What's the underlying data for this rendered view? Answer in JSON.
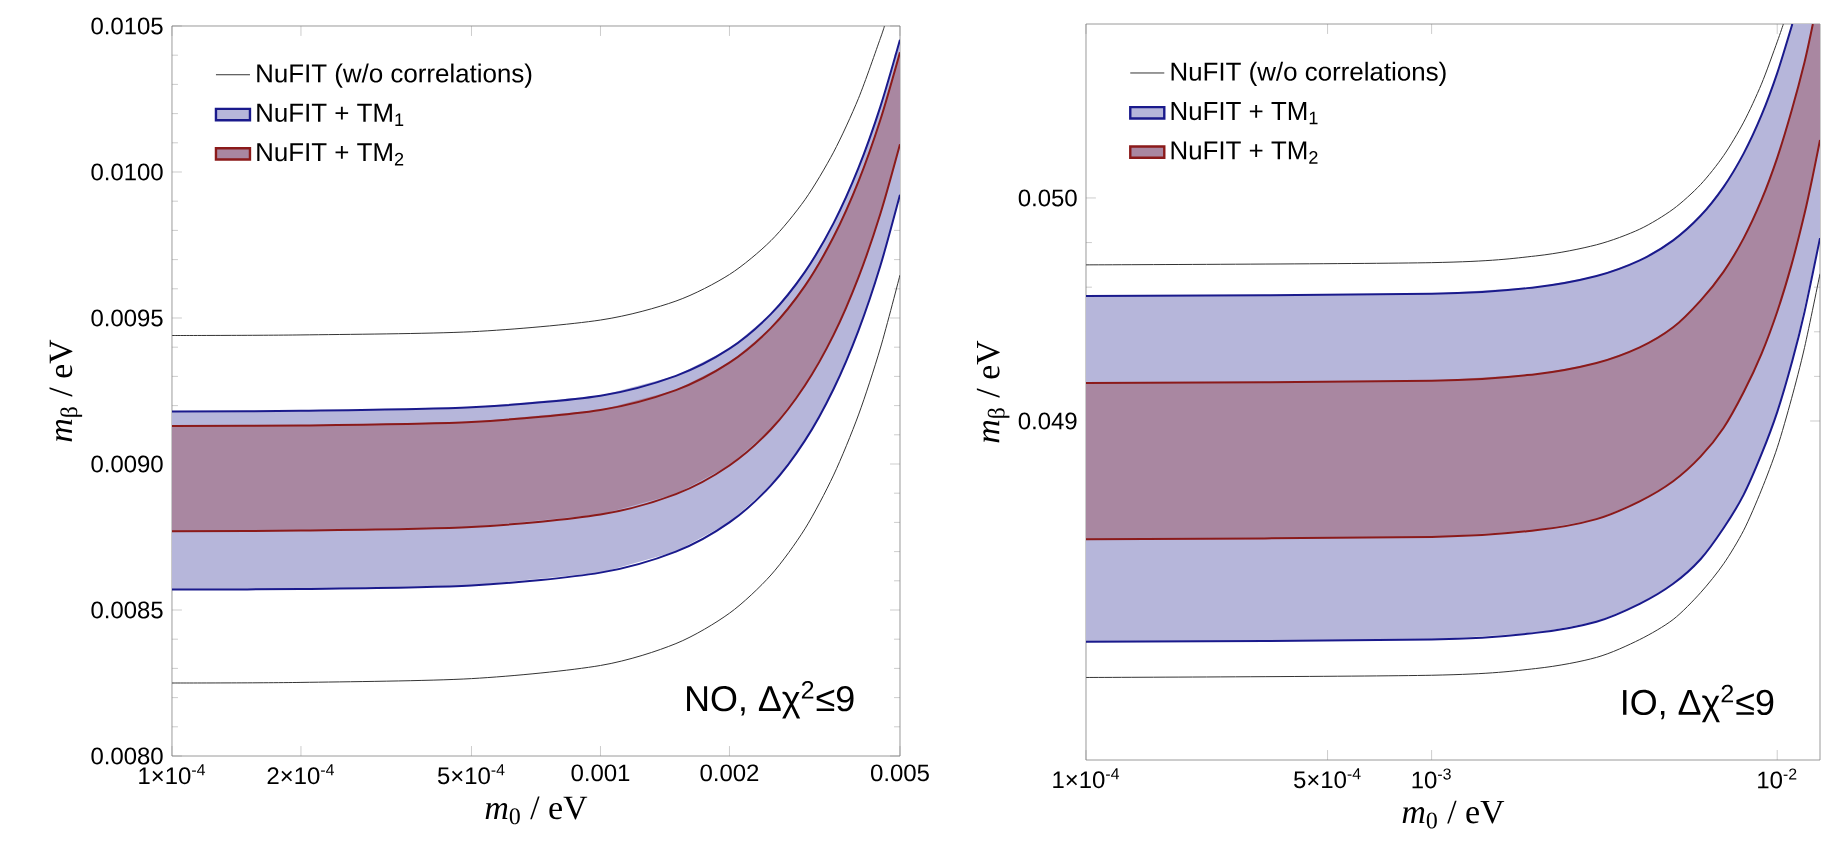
{
  "chart_data": [
    {
      "type": "line",
      "xlabel": "*m*$_{0}$ / eV",
      "ylabel": "*m*$_{β}$ / eV",
      "log": "x",
      "legend": "top left",
      "xlim": [
        0.0001,
        0.005
      ],
      "ylim": [
        0.008,
        0.0105
      ],
      "xticks": [
        {
          "value": 0.0001,
          "label": "1×10$^{-4}$"
        },
        {
          "value": 0.0002,
          "label": "2×10$^{-4}$"
        },
        {
          "value": 0.0005,
          "label": "5×10$^{-4}$"
        },
        0.001,
        0.002,
        0.005
      ],
      "yticks": [
        {
          "value": 0.008,
          "label": "0.0080"
        },
        {
          "value": 0.0085,
          "label": "0.0085"
        },
        {
          "value": 0.009,
          "label": "0.0090"
        },
        {
          "value": 0.0095,
          "label": "0.0095"
        },
        {
          "value": 0.01,
          "label": "0.0100"
        },
        {
          "value": 0.0105,
          "label": "0.0105"
        }
      ],
      "annotations": [
        "NO, Δχ$^{2}$≤9"
      ],
      "series": [
        {
          "name": "NuFIT (w/o correlations)",
          "type": "line",
          "color": "#333333",
          "x": [
            0.0001,
            0.0002,
            0.0005,
            0.001,
            0.0015,
            0.002,
            0.0025,
            0.003,
            0.0035,
            0.004,
            0.0045,
            0.0046
          ],
          "values": [
            0.00944,
            0.009442,
            0.009453,
            0.009493,
            0.009558,
            0.009649,
            0.009765,
            0.009905,
            0.010068,
            0.010252,
            0.010458,
            0.0105
          ]
        },
        {
          "type": "line",
          "color": "#333333",
          "x": [
            0.0001,
            0.0002,
            0.0005,
            0.001,
            0.0015,
            0.002,
            0.0025,
            0.003,
            0.0035,
            0.004,
            0.0045,
            0.005
          ],
          "values": [
            0.00825,
            0.008252,
            0.008265,
            0.00831,
            0.008385,
            0.008489,
            0.00862,
            0.008778,
            0.008962,
            0.009168,
            0.009397,
            0.009647
          ]
        },
        {
          "name": "NuFIT + TM$_{1}$",
          "color": "#1a1a8c",
          "x": [
            0.0001,
            0.0002,
            0.0005,
            0.001,
            0.0015,
            0.002,
            0.0025,
            0.003,
            0.0035,
            0.004,
            0.0045,
            0.005
          ],
          "values": [
            0.00918,
            0.009182,
            0.009194,
            0.009234,
            0.009302,
            0.009395,
            0.009514,
            0.009658,
            0.009825,
            0.010014,
            0.010224,
            0.010453
          ],
          "upper": [
            0.00918,
            0.009182,
            0.009194,
            0.009234,
            0.009302,
            0.009395,
            0.009514,
            0.009658,
            0.009825,
            0.010014,
            0.010224,
            0.010453
          ],
          "lower": [
            0.00857,
            0.008572,
            0.008584,
            0.008628,
            0.0087,
            0.0088,
            0.008927,
            0.00908,
            0.009257,
            0.009457,
            0.009679,
            0.009922
          ]
        },
        {
          "type": "line",
          "color": "#1a1a8c",
          "x": [
            0.0001,
            0.0002,
            0.0005,
            0.001,
            0.0015,
            0.002,
            0.0025,
            0.003,
            0.0035,
            0.004,
            0.0045,
            0.005
          ],
          "values": [
            0.00857,
            0.008572,
            0.008584,
            0.008628,
            0.0087,
            0.0088,
            0.008927,
            0.00908,
            0.009257,
            0.009457,
            0.009679,
            0.009922
          ]
        },
        {
          "name": "NuFIT + TM$_{2}$",
          "color": "#8b1a1a",
          "x": [
            0.0001,
            0.0002,
            0.0005,
            0.001,
            0.0015,
            0.002,
            0.0025,
            0.003,
            0.0035,
            0.004,
            0.0045,
            0.005
          ],
          "values": [
            0.00913,
            0.009132,
            0.009144,
            0.009185,
            0.009253,
            0.009347,
            0.009466,
            0.00961,
            0.009778,
            0.009968,
            0.010179,
            0.01041
          ],
          "upper": [
            0.00913,
            0.009132,
            0.009144,
            0.009185,
            0.009253,
            0.009347,
            0.009466,
            0.00961,
            0.009778,
            0.009968,
            0.010179,
            0.01041
          ],
          "lower": [
            0.00877,
            0.008772,
            0.008784,
            0.008827,
            0.008897,
            0.008995,
            0.009119,
            0.009269,
            0.009442,
            0.009639,
            0.009857,
            0.010095
          ]
        },
        {
          "type": "line",
          "color": "#8b1a1a",
          "x": [
            0.0001,
            0.0002,
            0.0005,
            0.001,
            0.0015,
            0.002,
            0.0025,
            0.003,
            0.0035,
            0.004,
            0.0045,
            0.005
          ],
          "values": [
            0.00877,
            0.008772,
            0.008784,
            0.008827,
            0.008897,
            0.008995,
            0.009119,
            0.009269,
            0.009442,
            0.009639,
            0.009857,
            0.010095
          ]
        }
      ]
    },
    {
      "type": "line",
      "xlabel": "*m*$_{0}$ / eV",
      "ylabel": "*m*$_{β}$ / eV",
      "log": "x",
      "legend": "top left",
      "xlim": [
        0.0001,
        0.0133
      ],
      "ylim": [
        0.04748,
        0.05078
      ],
      "xticks": [
        {
          "value": 0.0001,
          "label": "1×10$^{-4}$"
        },
        {
          "value": 0.0005,
          "label": "5×10$^{-4}$"
        },
        {
          "value": 0.001,
          "label": "10$^{-3}$"
        },
        {
          "value": 0.01,
          "label": "10$^{-2}$"
        }
      ],
      "yticks": [
        {
          "value": 0.049,
          "label": "0.049"
        },
        {
          "value": 0.05,
          "label": "0.050"
        }
      ],
      "annotations": [
        "IO, Δχ$^{2}$≤9"
      ],
      "series": [
        {
          "name": "NuFIT (w/o correlations)",
          "type": "line",
          "color": "#333333",
          "x": [
            0.0001,
            0.001,
            0.002,
            0.003,
            0.004,
            0.005,
            0.006,
            0.007,
            0.008,
            0.009,
            0.01,
            0.01042
          ],
          "values": [
            0.0497,
            0.04971,
            0.04974,
            0.04979,
            0.04986,
            0.04995,
            0.05006,
            0.05019,
            0.05034,
            0.05051,
            0.0507,
            0.05078
          ]
        },
        {
          "type": "line",
          "color": "#333333",
          "x": [
            0.0001,
            0.001,
            0.002,
            0.003,
            0.004,
            0.005,
            0.006,
            0.007,
            0.008,
            0.009,
            0.01,
            0.011,
            0.012,
            0.0133
          ],
          "values": [
            0.04785,
            0.04786,
            0.04789,
            0.04794,
            0.04802,
            0.04811,
            0.04823,
            0.04836,
            0.04851,
            0.04869,
            0.04888,
            0.0491,
            0.04933,
            0.04966
          ]
        },
        {
          "name": "NuFIT + TM$_{1}$",
          "color": "#1a1a8c",
          "x": [
            0.0001,
            0.001,
            0.002,
            0.003,
            0.004,
            0.005,
            0.006,
            0.007,
            0.008,
            0.009,
            0.01,
            0.01106,
            0.0133
          ],
          "values": [
            0.04956,
            0.04957,
            0.0496,
            0.04965,
            0.04972,
            0.04981,
            0.04992,
            0.05005,
            0.0502,
            0.05037,
            0.05056,
            0.05078,
            null
          ],
          "upper": [
            0.04956,
            0.04957,
            0.0496,
            0.04965,
            0.04972,
            0.04981,
            0.04992,
            0.05005,
            0.0502,
            0.05037,
            0.05056,
            0.05078,
            0.05078
          ],
          "lower": [
            0.04801,
            0.04802,
            0.04805,
            0.0481,
            0.04818,
            0.04827,
            0.04838,
            0.04852,
            0.04867,
            0.04885,
            0.04904,
            0.04927,
            0.04982
          ]
        },
        {
          "type": "line",
          "color": "#1a1a8c",
          "x": [
            0.0001,
            0.001,
            0.002,
            0.003,
            0.004,
            0.005,
            0.006,
            0.007,
            0.008,
            0.009,
            0.01,
            0.01106,
            0.012,
            0.0133
          ],
          "values": [
            0.04801,
            0.04802,
            0.04805,
            0.0481,
            0.04818,
            0.04827,
            0.04838,
            0.04852,
            0.04867,
            0.04885,
            0.04904,
            0.04927,
            0.04949,
            0.04982
          ]
        },
        {
          "name": "NuFIT + TM$_{2}$",
          "color": "#8b1a1a",
          "x": [
            0.0001,
            0.001,
            0.002,
            0.003,
            0.004,
            0.005,
            0.006,
            0.007,
            0.008,
            0.009,
            0.01,
            0.011,
            0.012,
            0.01268,
            0.0133
          ],
          "values": [
            0.04917,
            0.04918,
            0.04921,
            0.04926,
            0.04933,
            0.04942,
            0.04954,
            0.04967,
            0.04982,
            0.04999,
            0.05018,
            0.05039,
            0.05061,
            0.05078,
            null
          ],
          "upper": [
            0.04917,
            0.04918,
            0.04921,
            0.04926,
            0.04933,
            0.04942,
            0.04954,
            0.04967,
            0.04982,
            0.04999,
            0.05018,
            0.05039,
            0.05061,
            0.05078,
            0.05078
          ],
          "lower": [
            0.04847,
            0.04848,
            0.04851,
            0.04856,
            0.04864,
            0.04873,
            0.04884,
            0.04897,
            0.04913,
            0.0493,
            0.04949,
            0.0497,
            0.04993,
            0.0501,
            0.05026
          ]
        },
        {
          "type": "line",
          "color": "#8b1a1a",
          "x": [
            0.0001,
            0.001,
            0.002,
            0.003,
            0.004,
            0.005,
            0.006,
            0.007,
            0.008,
            0.009,
            0.01,
            0.011,
            0.012,
            0.01268,
            0.0133
          ],
          "values": [
            0.04847,
            0.04848,
            0.04851,
            0.04856,
            0.04864,
            0.04873,
            0.04884,
            0.04897,
            0.04913,
            0.0493,
            0.04949,
            0.0497,
            0.04993,
            0.0501,
            0.05026
          ]
        }
      ]
    }
  ]
}
